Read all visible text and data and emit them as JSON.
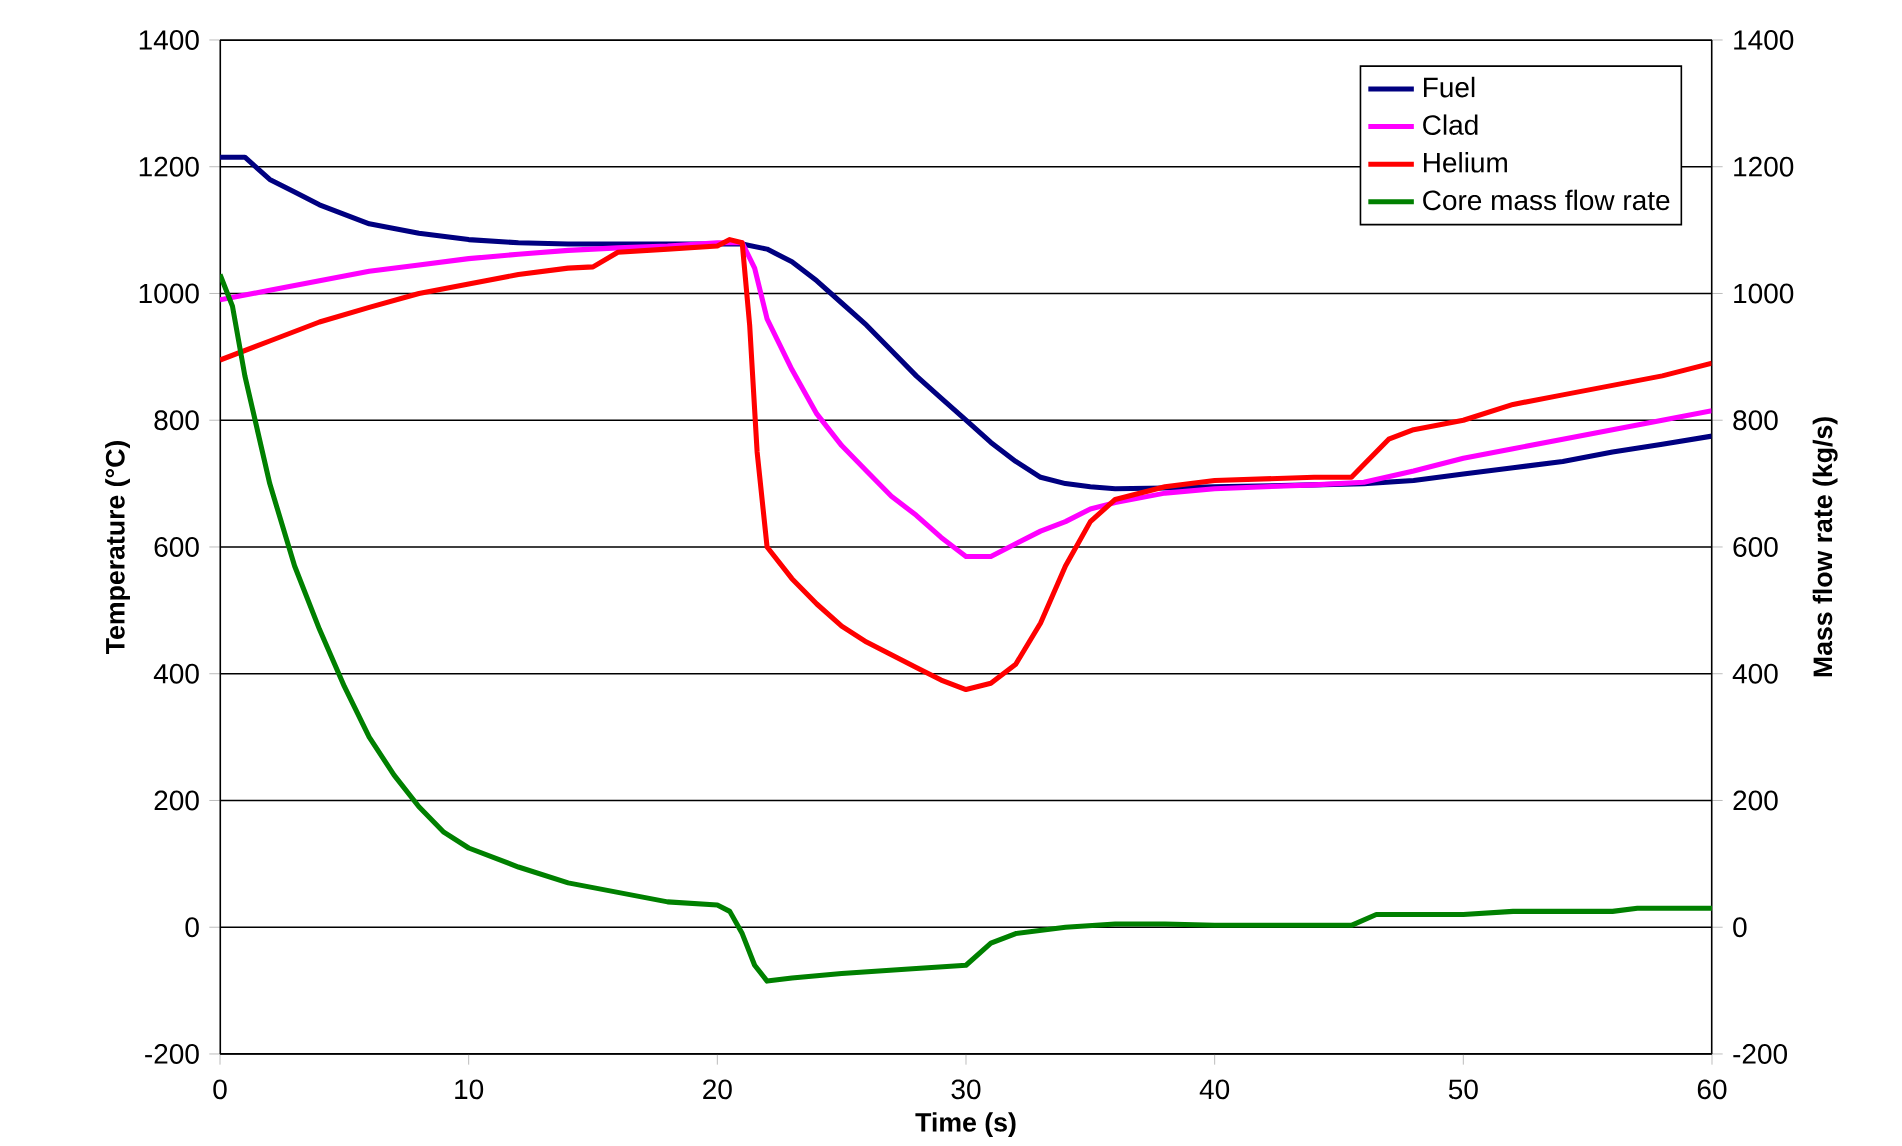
{
  "chart_data": {
    "type": "line",
    "xlabel": "Time (s)",
    "ylabel": "Temperature (°C)",
    "y2label": "Mass flow rate (kg/s)",
    "xlim": [
      0,
      60
    ],
    "xticks": [
      0,
      10,
      20,
      30,
      40,
      50,
      60
    ],
    "ylim": [
      -200,
      1400
    ],
    "yticks": [
      -200,
      0,
      200,
      400,
      600,
      800,
      1000,
      1200,
      1400
    ],
    "y2lim": [
      -200,
      1400
    ],
    "y2ticks": [
      -200,
      0,
      200,
      400,
      600,
      800,
      1000,
      1200,
      1400
    ],
    "grid": "y",
    "legend": "top right",
    "series": [
      {
        "name": "Fuel",
        "color": "#000080",
        "x": [
          0,
          1,
          2,
          3,
          4,
          6,
          8,
          10,
          12,
          14,
          20,
          21,
          22,
          23,
          24,
          25,
          26,
          27,
          28,
          29,
          30,
          31,
          32,
          33,
          34,
          35,
          36,
          38,
          40,
          44,
          46,
          48,
          50,
          52,
          54,
          56,
          58,
          60
        ],
        "values": [
          1215,
          1215,
          1180,
          1160,
          1140,
          1110,
          1095,
          1085,
          1080,
          1078,
          1078,
          1078,
          1070,
          1050,
          1020,
          985,
          950,
          910,
          870,
          835,
          800,
          765,
          735,
          710,
          700,
          695,
          692,
          693,
          695,
          698,
          700,
          705,
          715,
          725,
          735,
          750,
          762,
          775
        ]
      },
      {
        "name": "Clad",
        "color": "#ff00ff",
        "x": [
          0,
          2,
          4,
          6,
          8,
          10,
          12,
          14,
          16,
          18,
          20,
          21,
          21.5,
          22,
          23,
          24,
          25,
          26,
          27,
          28,
          29,
          30,
          31,
          32,
          33,
          34,
          35,
          36,
          38,
          40,
          44,
          46,
          48,
          50,
          52,
          54,
          56,
          58,
          60
        ],
        "values": [
          990,
          1005,
          1020,
          1035,
          1045,
          1055,
          1062,
          1068,
          1072,
          1075,
          1080,
          1080,
          1040,
          960,
          880,
          810,
          760,
          720,
          680,
          650,
          615,
          585,
          585,
          605,
          625,
          640,
          660,
          670,
          685,
          692,
          698,
          702,
          720,
          740,
          755,
          770,
          785,
          800,
          815
        ]
      },
      {
        "name": "Helium",
        "color": "#ff0000",
        "x": [
          0,
          2,
          4,
          6,
          8,
          10,
          12,
          14,
          15,
          16,
          18,
          20,
          20.5,
          21,
          21.3,
          21.6,
          22,
          23,
          24,
          25,
          26,
          27,
          28,
          29,
          30,
          31,
          32,
          33,
          34,
          35,
          36,
          38,
          40,
          44,
          45.5,
          46,
          47,
          48,
          50,
          52,
          54,
          56,
          58,
          60
        ],
        "values": [
          895,
          925,
          955,
          978,
          1000,
          1015,
          1030,
          1040,
          1042,
          1065,
          1070,
          1075,
          1085,
          1080,
          950,
          750,
          600,
          550,
          510,
          475,
          450,
          430,
          410,
          390,
          375,
          385,
          415,
          480,
          570,
          640,
          675,
          695,
          705,
          710,
          710,
          730,
          770,
          785,
          800,
          825,
          840,
          855,
          870,
          890
        ]
      },
      {
        "name": "Core mass flow rate",
        "color": "#008000",
        "axis": "y2",
        "x": [
          0,
          0.5,
          1,
          2,
          3,
          4,
          5,
          6,
          7,
          8,
          9,
          10,
          12,
          14,
          16,
          18,
          20,
          20.5,
          21,
          21.5,
          22,
          23,
          25,
          28,
          30,
          31,
          32,
          34,
          36,
          38,
          40,
          45.5,
          46.5,
          50,
          52,
          56,
          57,
          60
        ],
        "values": [
          1030,
          980,
          870,
          700,
          570,
          470,
          380,
          300,
          240,
          190,
          150,
          125,
          95,
          70,
          55,
          40,
          35,
          25,
          -10,
          -60,
          -85,
          -80,
          -73,
          -65,
          -60,
          -25,
          -10,
          0,
          5,
          5,
          3,
          3,
          20,
          20,
          25,
          25,
          30,
          30
        ]
      }
    ]
  }
}
